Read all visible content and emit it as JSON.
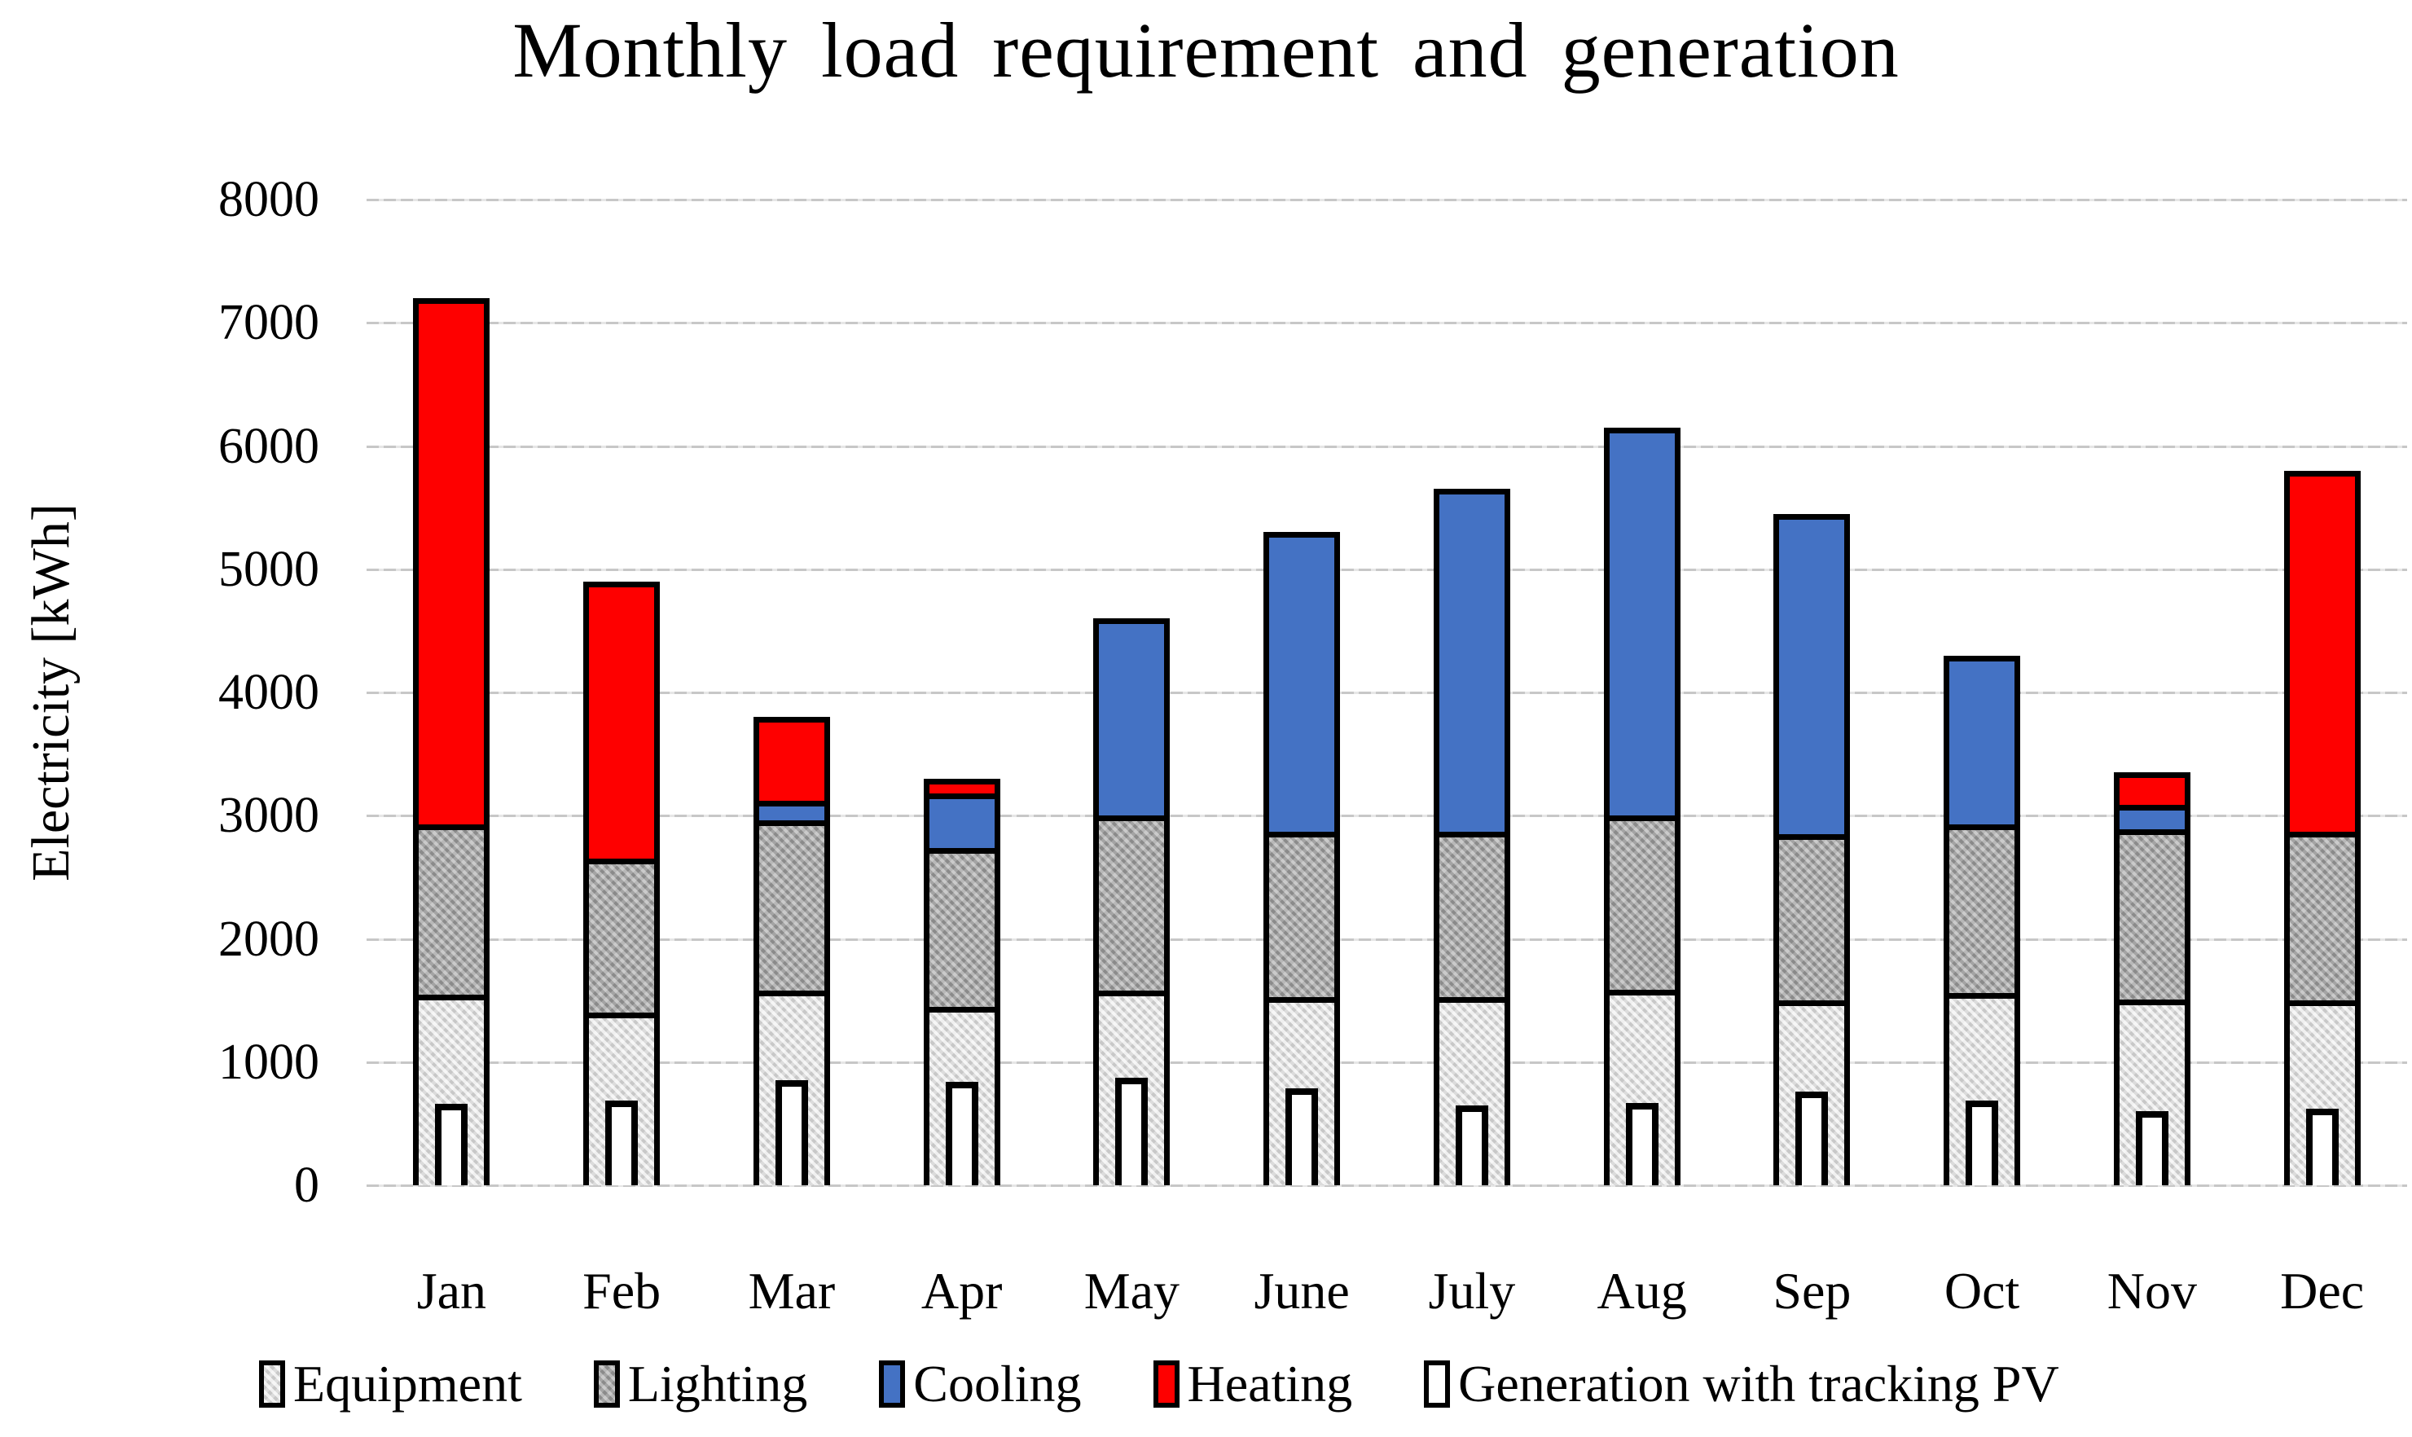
{
  "chart_data": {
    "type": "bar",
    "stacked": true,
    "title": "Monthly load requirement and generation",
    "xlabel": "",
    "ylabel": "Electricity [kWh]",
    "ylim": [
      0,
      8000
    ],
    "ytick_step": 1000,
    "yticks": [
      "0",
      "1000",
      "2000",
      "3000",
      "4000",
      "5000",
      "6000",
      "7000",
      "8000"
    ],
    "grid": true,
    "legend_position": "bottom",
    "categories": [
      "Jan",
      "Feb",
      "Mar",
      "Apr",
      "May",
      "June",
      "July",
      "Aug",
      "Sep",
      "Oct",
      "Nov",
      "Dec"
    ],
    "series": [
      {
        "name": "Equipment",
        "color": "#dbdbdb",
        "textured": true,
        "values": [
          1550,
          1400,
          1580,
          1450,
          1580,
          1530,
          1530,
          1590,
          1500,
          1560,
          1510,
          1500
        ]
      },
      {
        "name": "Lighting",
        "color": "#a4a4a4",
        "textured": true,
        "values": [
          1380,
          1250,
          1380,
          1290,
          1420,
          1340,
          1340,
          1410,
          1350,
          1370,
          1380,
          1370
        ]
      },
      {
        "name": "Cooling",
        "color": "#4472c4",
        "textured": false,
        "values": [
          0,
          0,
          160,
          440,
          1600,
          2430,
          2780,
          3150,
          2600,
          1370,
          200,
          0
        ]
      },
      {
        "name": "Heating",
        "color": "#fe0000",
        "textured": false,
        "values": [
          4270,
          2250,
          680,
          120,
          0,
          0,
          0,
          0,
          0,
          0,
          260,
          2930
        ]
      }
    ],
    "overlay_series": {
      "name": "Generation with tracking PV",
      "color": "#ffffff",
      "values": [
        660,
        690,
        850,
        840,
        870,
        790,
        650,
        670,
        760,
        690,
        600,
        620
      ]
    },
    "totals": [
      7200,
      4900,
      3800,
      3300,
      4600,
      5300,
      5650,
      6150,
      5450,
      4300,
      3350,
      5800
    ],
    "legend": [
      "Equipment",
      "Lighting",
      "Cooling",
      "Heating",
      "Generation with tracking PV"
    ]
  },
  "colors": {
    "heating_red": "#fe0000",
    "cooling_blue": "#4472c4",
    "lighting_gray": "#a4a4a4",
    "equipment_light_gray": "#dbdbdb",
    "generation_white": "#ffffff",
    "bar_border": "#000000",
    "gridline": "#c7c7c7",
    "background": "#ffffff",
    "text": "#000000"
  }
}
